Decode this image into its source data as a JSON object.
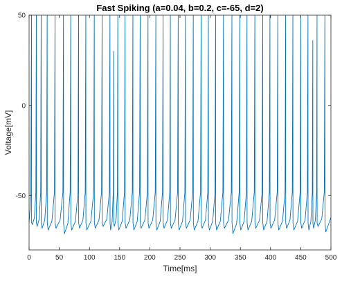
{
  "chart_data": {
    "type": "line",
    "title": "Fast Spiking (a=0.04, b=0.2, c=-65, d=2)",
    "xlabel": "Time[ms]",
    "ylabel": "Voltage[mV]",
    "xlim": [
      0,
      500
    ],
    "ylim": [
      -80,
      50
    ],
    "xticks": [
      0,
      50,
      100,
      150,
      200,
      250,
      300,
      350,
      400,
      450,
      500
    ],
    "yticks": [
      -50,
      0,
      50
    ],
    "grid": false,
    "box": true,
    "line_color": "#0072bd",
    "series": [
      {
        "spike_times_ms": [
          4,
          12,
          20,
          30,
          43,
          57,
          69,
          82,
          94,
          108,
          121,
          134,
          140,
          147,
          159,
          172,
          184,
          197,
          210,
          222,
          234,
          247,
          259,
          272,
          285,
          297,
          309,
          322,
          336,
          349,
          361,
          374,
          387,
          399,
          412,
          425,
          437,
          450,
          462,
          470,
          477,
          490
        ],
        "spike_peaks_mv": [
          50,
          50,
          50,
          50,
          50,
          50,
          50,
          50,
          50,
          50,
          50,
          50,
          30,
          50,
          50,
          50,
          50,
          50,
          50,
          50,
          50,
          50,
          50,
          50,
          50,
          50,
          50,
          50,
          50,
          50,
          50,
          50,
          50,
          50,
          50,
          50,
          50,
          50,
          50,
          36,
          50,
          50
        ],
        "reset_mv": -65,
        "trough_mv": [
          -66,
          -67,
          -68,
          -69,
          -68,
          -71,
          -69,
          -68,
          -69,
          -68,
          -67,
          -69,
          -67,
          -69,
          -68,
          -69,
          -68,
          -68,
          -69,
          -68,
          -68,
          -69,
          -68,
          -69,
          -68,
          -69,
          -69,
          -68,
          -71,
          -69,
          -69,
          -68,
          -69,
          -68,
          -69,
          -68,
          -69,
          -68,
          -69,
          -68,
          -67,
          -70
        ]
      }
    ]
  }
}
